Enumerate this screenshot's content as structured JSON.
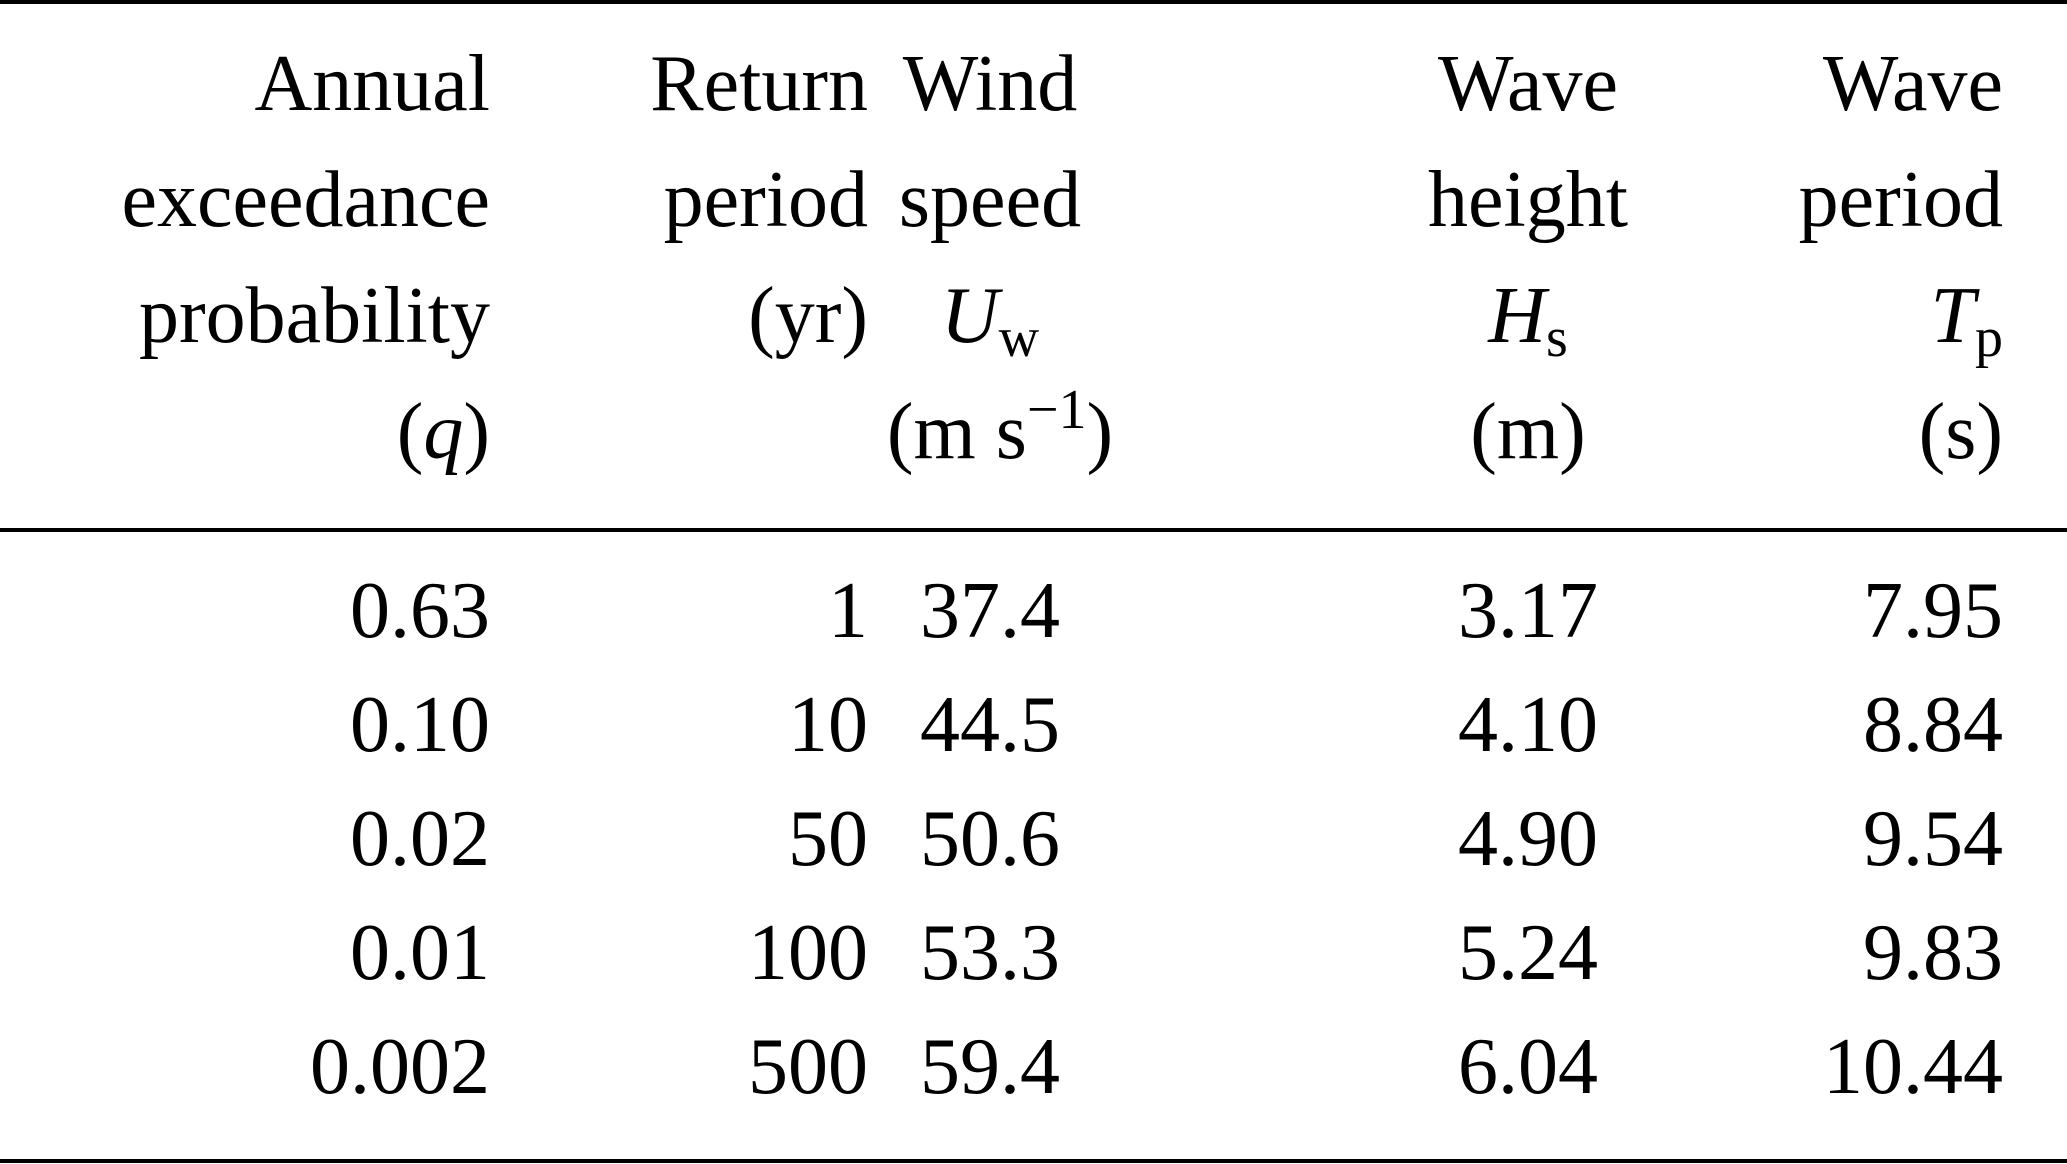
{
  "table": {
    "columns": [
      {
        "lines": [
          "Annual",
          "exceedance",
          "probability"
        ],
        "symbol": "q"
      },
      {
        "lines": [
          "Return",
          "period",
          "(yr)"
        ]
      },
      {
        "lines": [
          "Wind",
          "speed"
        ],
        "symbol": "U",
        "symbol_sub": "w",
        "unit_base": "m s",
        "unit_sup": "−1"
      },
      {
        "lines": [
          "Wave",
          "height"
        ],
        "symbol": "H",
        "symbol_sub": "s",
        "unit": "(m)"
      },
      {
        "lines": [
          "Wave",
          "period"
        ],
        "symbol": "T",
        "symbol_sub": "p",
        "unit": "(s)"
      }
    ],
    "rows": [
      [
        "0.63",
        "1",
        "37.4",
        "3.17",
        "7.95"
      ],
      [
        "0.10",
        "10",
        "44.5",
        "4.10",
        "8.84"
      ],
      [
        "0.02",
        "50",
        "50.6",
        "4.90",
        "9.54"
      ],
      [
        "0.01",
        "100",
        "53.3",
        "5.24",
        "9.83"
      ],
      [
        "0.002",
        "500",
        "59.4",
        "6.04",
        "10.44"
      ]
    ]
  }
}
